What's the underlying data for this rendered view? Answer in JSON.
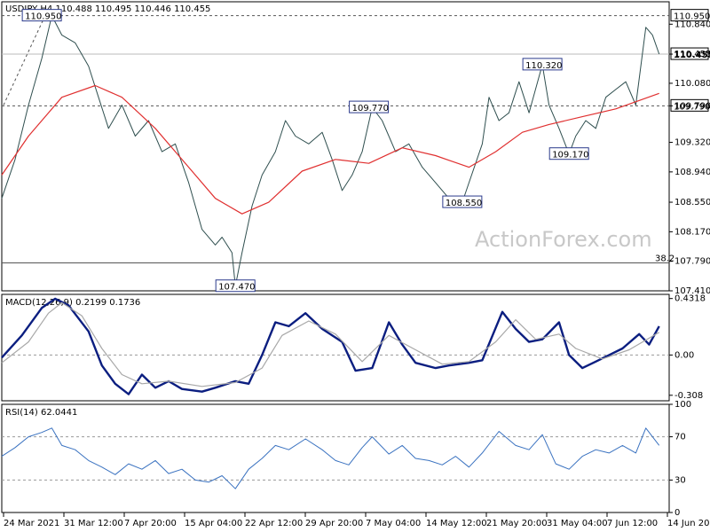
{
  "header": {
    "price_title": "USDJPY,H4  110.488 110.495 110.446 110.455",
    "macd_title": "MACD(12,26,9) 0.2199 0.1736",
    "rsi_title": "RSI(14) 62.0441"
  },
  "watermark": "ActionForex.com",
  "colors": {
    "price_line": "#2f4f4f",
    "sma": "#e03030",
    "macd_main": "#0b1e80",
    "macd_signal": "#a8a8a8",
    "rsi": "#3a72c0",
    "current_price_box": "#ffffff",
    "level_line": "#555555"
  },
  "chart_data": [
    {
      "type": "line",
      "panel": "price",
      "title": "USDJPY,H4  110.488 110.495 110.446 110.455",
      "y_range": [
        107.41,
        111.06
      ],
      "y_ticks": [
        "110.840",
        "110.455",
        "110.080",
        "109.790",
        "109.320",
        "108.940",
        "108.550",
        "108.170",
        "107.790",
        "107.410"
      ],
      "x_ticks": [
        "24 Mar 2021",
        "31 Mar 12:00",
        "7 Apr 20:00",
        "15 Apr 04:00",
        "22 Apr 12:00",
        "29 Apr 20:00",
        "7 May 04:00",
        "14 May 12:00",
        "21 May 20:00",
        "31 May 04:00",
        "7 Jun 12:00",
        "14 Jun 20:00"
      ],
      "current_price": "110.455",
      "levels": [
        {
          "label": "110.950",
          "value": 110.95,
          "style": "dashed"
        },
        {
          "label": "109.790",
          "value": 109.79,
          "style": "dashed"
        },
        {
          "label": "38.2",
          "value": 107.77,
          "style": "solid"
        }
      ],
      "annotations": [
        {
          "text": "110.950",
          "x": 0.06,
          "y": 110.95
        },
        {
          "text": "107.470",
          "x": 0.35,
          "y": 107.47
        },
        {
          "text": "109.770",
          "x": 0.55,
          "y": 109.77
        },
        {
          "text": "108.550",
          "x": 0.69,
          "y": 108.55
        },
        {
          "text": "110.320",
          "x": 0.81,
          "y": 110.32
        },
        {
          "text": "109.170",
          "x": 0.85,
          "y": 109.17
        }
      ],
      "series": [
        {
          "name": "USDJPY",
          "points": [
            [
              0.0,
              108.6
            ],
            [
              0.02,
              109.1
            ],
            [
              0.04,
              109.8
            ],
            [
              0.06,
              110.4
            ],
            [
              0.075,
              110.95
            ],
            [
              0.09,
              110.7
            ],
            [
              0.11,
              110.6
            ],
            [
              0.13,
              110.3
            ],
            [
              0.145,
              109.9
            ],
            [
              0.16,
              109.5
            ],
            [
              0.18,
              109.8
            ],
            [
              0.2,
              109.4
            ],
            [
              0.22,
              109.6
            ],
            [
              0.24,
              109.2
            ],
            [
              0.26,
              109.3
            ],
            [
              0.28,
              108.8
            ],
            [
              0.3,
              108.2
            ],
            [
              0.32,
              108.0
            ],
            [
              0.33,
              108.1
            ],
            [
              0.345,
              107.9
            ],
            [
              0.35,
              107.47
            ],
            [
              0.36,
              107.9
            ],
            [
              0.375,
              108.5
            ],
            [
              0.39,
              108.9
            ],
            [
              0.41,
              109.2
            ],
            [
              0.425,
              109.6
            ],
            [
              0.44,
              109.4
            ],
            [
              0.46,
              109.3
            ],
            [
              0.48,
              109.45
            ],
            [
              0.495,
              109.1
            ],
            [
              0.51,
              108.7
            ],
            [
              0.525,
              108.9
            ],
            [
              0.54,
              109.2
            ],
            [
              0.555,
              109.77
            ],
            [
              0.57,
              109.6
            ],
            [
              0.59,
              109.2
            ],
            [
              0.61,
              109.3
            ],
            [
              0.63,
              109.0
            ],
            [
              0.65,
              108.8
            ],
            [
              0.67,
              108.6
            ],
            [
              0.69,
              108.55
            ],
            [
              0.7,
              108.8
            ],
            [
              0.72,
              109.3
            ],
            [
              0.73,
              109.9
            ],
            [
              0.745,
              109.6
            ],
            [
              0.76,
              109.7
            ],
            [
              0.775,
              110.1
            ],
            [
              0.79,
              109.7
            ],
            [
              0.81,
              110.32
            ],
            [
              0.82,
              109.8
            ],
            [
              0.835,
              109.5
            ],
            [
              0.85,
              109.17
            ],
            [
              0.86,
              109.4
            ],
            [
              0.875,
              109.6
            ],
            [
              0.89,
              109.5
            ],
            [
              0.905,
              109.9
            ],
            [
              0.92,
              110.0
            ],
            [
              0.935,
              110.1
            ],
            [
              0.95,
              109.8
            ],
            [
              0.965,
              110.8
            ],
            [
              0.975,
              110.7
            ],
            [
              0.985,
              110.455
            ]
          ]
        },
        {
          "name": "SMA",
          "points": [
            [
              0.0,
              108.9
            ],
            [
              0.04,
              109.4
            ],
            [
              0.09,
              109.9
            ],
            [
              0.14,
              110.05
            ],
            [
              0.18,
              109.9
            ],
            [
              0.23,
              109.5
            ],
            [
              0.28,
              109.0
            ],
            [
              0.32,
              108.6
            ],
            [
              0.36,
              108.4
            ],
            [
              0.4,
              108.55
            ],
            [
              0.45,
              108.95
            ],
            [
              0.5,
              109.1
            ],
            [
              0.55,
              109.05
            ],
            [
              0.6,
              109.25
            ],
            [
              0.65,
              109.15
            ],
            [
              0.7,
              109.0
            ],
            [
              0.74,
              109.2
            ],
            [
              0.78,
              109.45
            ],
            [
              0.82,
              109.55
            ],
            [
              0.87,
              109.65
            ],
            [
              0.92,
              109.75
            ],
            [
              0.985,
              109.95
            ]
          ]
        }
      ]
    },
    {
      "type": "line",
      "panel": "macd",
      "title": "MACD(12,26,9) 0.2199 0.1736",
      "y_range": [
        -0.35,
        0.45
      ],
      "y_ticks": [
        "0.4318",
        "0.00",
        "-0.308"
      ],
      "current_values": [
        "0.2199",
        "0.1736"
      ],
      "series": [
        {
          "name": "MACD",
          "points": [
            [
              0.0,
              -0.02
            ],
            [
              0.03,
              0.15
            ],
            [
              0.06,
              0.36
            ],
            [
              0.08,
              0.43
            ],
            [
              0.1,
              0.38
            ],
            [
              0.13,
              0.18
            ],
            [
              0.15,
              -0.08
            ],
            [
              0.17,
              -0.22
            ],
            [
              0.19,
              -0.3
            ],
            [
              0.21,
              -0.15
            ],
            [
              0.23,
              -0.25
            ],
            [
              0.25,
              -0.2
            ],
            [
              0.27,
              -0.26
            ],
            [
              0.3,
              -0.28
            ],
            [
              0.32,
              -0.25
            ],
            [
              0.35,
              -0.2
            ],
            [
              0.37,
              -0.22
            ],
            [
              0.39,
              0.0
            ],
            [
              0.41,
              0.25
            ],
            [
              0.43,
              0.22
            ],
            [
              0.455,
              0.32
            ],
            [
              0.48,
              0.2
            ],
            [
              0.51,
              0.1
            ],
            [
              0.53,
              -0.12
            ],
            [
              0.555,
              -0.1
            ],
            [
              0.58,
              0.25
            ],
            [
              0.6,
              0.08
            ],
            [
              0.62,
              -0.06
            ],
            [
              0.65,
              -0.1
            ],
            [
              0.67,
              -0.08
            ],
            [
              0.7,
              -0.06
            ],
            [
              0.72,
              -0.04
            ],
            [
              0.75,
              0.33
            ],
            [
              0.77,
              0.2
            ],
            [
              0.79,
              0.1
            ],
            [
              0.81,
              0.12
            ],
            [
              0.835,
              0.25
            ],
            [
              0.85,
              0.0
            ],
            [
              0.87,
              -0.1
            ],
            [
              0.89,
              -0.05
            ],
            [
              0.91,
              0.0
            ],
            [
              0.93,
              0.05
            ],
            [
              0.955,
              0.16
            ],
            [
              0.97,
              0.08
            ],
            [
              0.985,
              0.2199
            ]
          ]
        },
        {
          "name": "Signal",
          "points": [
            [
              0.0,
              -0.06
            ],
            [
              0.04,
              0.1
            ],
            [
              0.07,
              0.32
            ],
            [
              0.09,
              0.4
            ],
            [
              0.12,
              0.3
            ],
            [
              0.15,
              0.05
            ],
            [
              0.18,
              -0.15
            ],
            [
              0.21,
              -0.22
            ],
            [
              0.25,
              -0.2
            ],
            [
              0.3,
              -0.24
            ],
            [
              0.35,
              -0.21
            ],
            [
              0.39,
              -0.1
            ],
            [
              0.42,
              0.15
            ],
            [
              0.46,
              0.26
            ],
            [
              0.5,
              0.16
            ],
            [
              0.54,
              -0.05
            ],
            [
              0.58,
              0.15
            ],
            [
              0.62,
              0.04
            ],
            [
              0.66,
              -0.07
            ],
            [
              0.7,
              -0.05
            ],
            [
              0.74,
              0.1
            ],
            [
              0.77,
              0.27
            ],
            [
              0.8,
              0.12
            ],
            [
              0.835,
              0.16
            ],
            [
              0.86,
              0.05
            ],
            [
              0.9,
              -0.03
            ],
            [
              0.94,
              0.04
            ],
            [
              0.985,
              0.1736
            ]
          ]
        }
      ]
    },
    {
      "type": "line",
      "panel": "rsi",
      "title": "RSI(14) 62.0441",
      "y_range": [
        0,
        100
      ],
      "y_ticks": [
        "100",
        "70",
        "30",
        "0"
      ],
      "levels": [
        70,
        30
      ],
      "current_value": "62.0441",
      "series": [
        {
          "name": "RSI",
          "points": [
            [
              0.0,
              52
            ],
            [
              0.02,
              60
            ],
            [
              0.04,
              70
            ],
            [
              0.06,
              74
            ],
            [
              0.075,
              78
            ],
            [
              0.09,
              62
            ],
            [
              0.11,
              58
            ],
            [
              0.13,
              48
            ],
            [
              0.15,
              42
            ],
            [
              0.17,
              35
            ],
            [
              0.19,
              45
            ],
            [
              0.21,
              40
            ],
            [
              0.23,
              48
            ],
            [
              0.25,
              36
            ],
            [
              0.27,
              40
            ],
            [
              0.29,
              30
            ],
            [
              0.31,
              28
            ],
            [
              0.33,
              34
            ],
            [
              0.35,
              22
            ],
            [
              0.37,
              40
            ],
            [
              0.39,
              50
            ],
            [
              0.41,
              62
            ],
            [
              0.43,
              58
            ],
            [
              0.455,
              68
            ],
            [
              0.48,
              58
            ],
            [
              0.5,
              48
            ],
            [
              0.52,
              44
            ],
            [
              0.54,
              60
            ],
            [
              0.555,
              70
            ],
            [
              0.58,
              54
            ],
            [
              0.6,
              62
            ],
            [
              0.62,
              50
            ],
            [
              0.64,
              48
            ],
            [
              0.66,
              44
            ],
            [
              0.68,
              52
            ],
            [
              0.7,
              42
            ],
            [
              0.72,
              55
            ],
            [
              0.745,
              75
            ],
            [
              0.77,
              62
            ],
            [
              0.79,
              58
            ],
            [
              0.81,
              72
            ],
            [
              0.83,
              45
            ],
            [
              0.85,
              40
            ],
            [
              0.87,
              52
            ],
            [
              0.89,
              58
            ],
            [
              0.91,
              55
            ],
            [
              0.93,
              62
            ],
            [
              0.95,
              55
            ],
            [
              0.965,
              78
            ],
            [
              0.975,
              70
            ],
            [
              0.985,
              62.0441
            ]
          ]
        }
      ]
    }
  ]
}
